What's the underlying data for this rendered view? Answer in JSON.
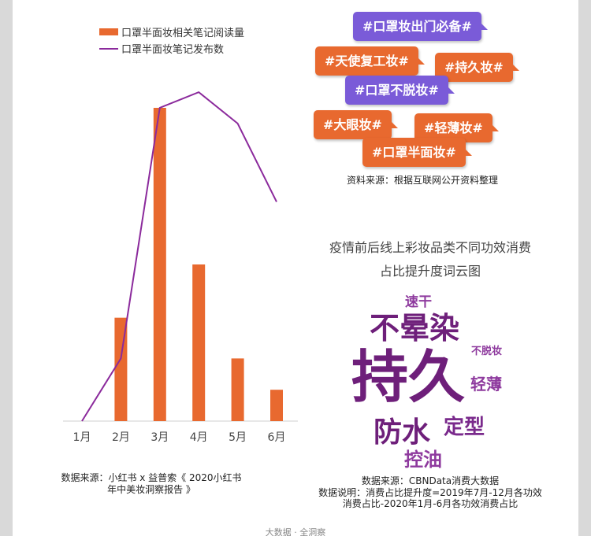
{
  "colors": {
    "bar": "#e8692f",
    "line": "#8b2a9c",
    "tag_orange": "#e8692f",
    "tag_purple": "#7a5bd8",
    "word_dark": "#6e1f7a",
    "word_mid": "#8e3a9e"
  },
  "chart_data": {
    "type": "bar",
    "categories": [
      "1月",
      "2月",
      "3月",
      "4月",
      "5月",
      "6月"
    ],
    "series": [
      {
        "name": "口罩半面妆相关笔记阅读量",
        "type": "bar",
        "values": [
          0,
          33,
          100,
          50,
          20,
          10
        ]
      },
      {
        "name": "口罩半面妆笔记发布数",
        "type": "line",
        "values": [
          0,
          20,
          100,
          105,
          95,
          70
        ]
      }
    ],
    "legend": "top",
    "grid": false,
    "ylim": [
      0,
      110
    ]
  },
  "left_source": "数据来源：小红书 x 益普索《 2020小红书年中美妆洞察报告 》",
  "tags": [
    {
      "text": "#口罩妆出门必备#",
      "color": "purple"
    },
    {
      "text": "#天使复工妆#",
      "color": "orange"
    },
    {
      "text": "#持久妆#",
      "color": "orange"
    },
    {
      "text": "#口罩不脱妆#",
      "color": "purple"
    },
    {
      "text": "#大眼妆#",
      "color": "orange"
    },
    {
      "text": "#轻薄妆#",
      "color": "orange"
    },
    {
      "text": "#口罩半面妆#",
      "color": "orange"
    }
  ],
  "tags_source": "资料来源：根据互联网公开资料整理",
  "wordcloud": {
    "title_line1": "疫情前后线上彩妆品类不同功效消费",
    "title_line2": "占比提升度词云图",
    "words": [
      "速干",
      "不晕染",
      "不脱妆",
      "持久",
      "轻薄",
      "防水",
      "定型",
      "控油"
    ]
  },
  "wc_source": {
    "line1": "数据来源：CBNData消费大数据",
    "line2": "数据说明：消费占比提升度=2019年7月-12月各功效",
    "line3": "消费占比-2020年1月-6月各功效消费占比"
  },
  "footer": "大数据 · 全洞察"
}
